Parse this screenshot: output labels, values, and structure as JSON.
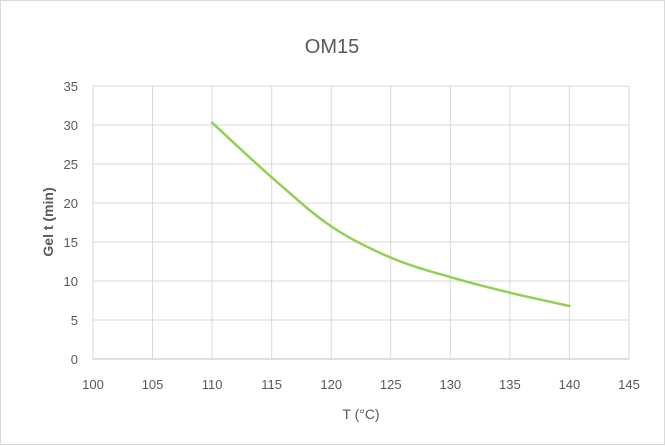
{
  "chart_data": {
    "type": "line",
    "title": "OM15",
    "xlabel": "T (°C)",
    "ylabel": "Gel t (min)",
    "xlim": [
      100,
      145
    ],
    "ylim": [
      0,
      35
    ],
    "x_ticks": [
      100,
      105,
      110,
      115,
      120,
      125,
      130,
      135,
      140,
      145
    ],
    "y_ticks": [
      0,
      5,
      10,
      15,
      20,
      25,
      30,
      35
    ],
    "grid": true,
    "legend": "none",
    "series": [
      {
        "color": "#92d050",
        "x": [
          110,
          115,
          120,
          125,
          130,
          135,
          140
        ],
        "y": [
          30.3,
          23.3,
          17.0,
          13.0,
          10.5,
          8.5,
          6.8
        ]
      }
    ]
  }
}
